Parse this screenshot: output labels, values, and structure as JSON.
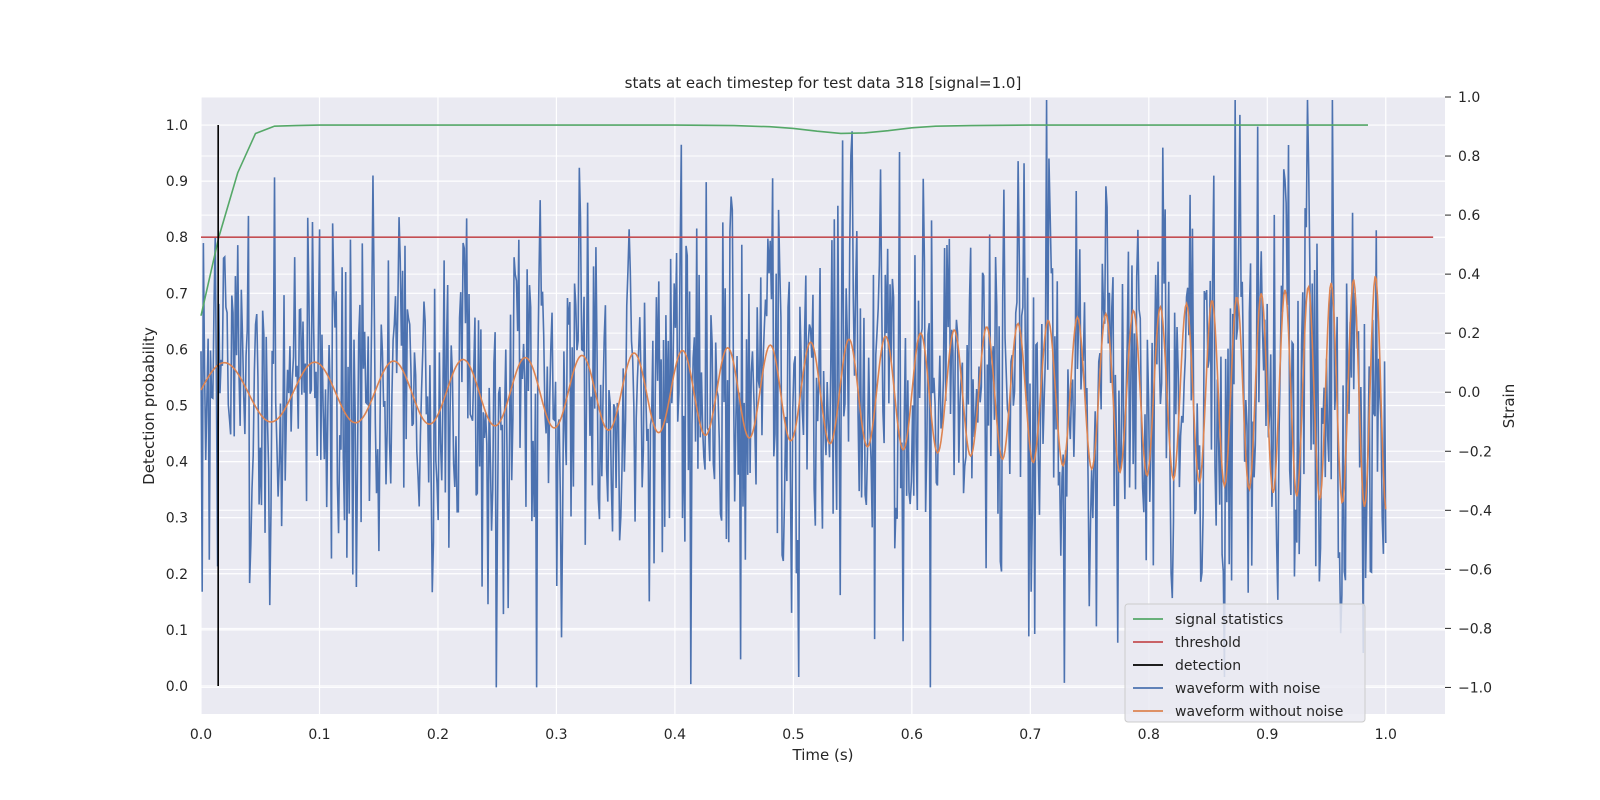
{
  "chart_data": {
    "type": "line",
    "title": "stats at each timestep for test data 318 [signal=1.0]",
    "xlabel": "Time (s)",
    "ylabel": "Detection probability",
    "y2label": "Strain",
    "xlim": [
      0.0,
      1.05
    ],
    "ylim": [
      -0.05,
      1.05
    ],
    "y2lim": [
      -1.09,
      1.0
    ],
    "xticks": [
      0.0,
      0.1,
      0.2,
      0.3,
      0.4,
      0.5,
      0.6,
      0.7,
      0.8,
      0.9,
      1.0
    ],
    "xtick_labels": [
      "0.0",
      "0.1",
      "0.2",
      "0.3",
      "0.4",
      "0.5",
      "0.6",
      "0.7",
      "0.8",
      "0.9",
      "1.0"
    ],
    "yticks": [
      0.0,
      0.1,
      0.2,
      0.3,
      0.4,
      0.5,
      0.6,
      0.7,
      0.8,
      0.9,
      1.0
    ],
    "ytick_labels": [
      "0.0",
      "0.1",
      "0.2",
      "0.3",
      "0.4",
      "0.5",
      "0.6",
      "0.7",
      "0.8",
      "0.9",
      "1.0"
    ],
    "y2ticks": [
      -1.0,
      -0.8,
      -0.6,
      -0.4,
      -0.2,
      0.0,
      0.2,
      0.4,
      0.6,
      0.8,
      1.0
    ],
    "y2tick_labels": [
      "−1.0",
      "−0.8",
      "−0.6",
      "−0.4",
      "−0.2",
      "0.0",
      "0.2",
      "0.4",
      "0.6",
      "0.8",
      "1.0"
    ],
    "grid": true,
    "background": "#eaeaf2",
    "legend_position": "lower-right",
    "legend": [
      "signal statistics",
      "threshold",
      "detection",
      "waveform with noise",
      "waveform without noise"
    ],
    "series": [
      {
        "name": "signal statistics",
        "axis": "left",
        "color": "#55a868",
        "x": [
          0.0,
          0.015,
          0.031,
          0.046,
          0.062,
          0.08,
          0.1,
          0.2,
          0.3,
          0.4,
          0.45,
          0.48,
          0.5,
          0.52,
          0.54,
          0.56,
          0.58,
          0.6,
          0.62,
          0.65,
          0.7,
          0.8,
          0.9,
          0.985
        ],
        "values": [
          0.66,
          0.8,
          0.915,
          0.985,
          0.998,
          0.999,
          1.0,
          1.0,
          1.0,
          1.0,
          0.999,
          0.997,
          0.994,
          0.989,
          0.985,
          0.986,
          0.99,
          0.995,
          0.998,
          0.999,
          1.0,
          1.0,
          1.0,
          1.0
        ]
      },
      {
        "name": "threshold",
        "axis": "left",
        "color": "#c44e52",
        "x": [
          0.0,
          1.04
        ],
        "values": [
          0.8,
          0.8
        ]
      },
      {
        "name": "detection",
        "axis": "left",
        "color": "#000000",
        "x": [
          0.0145,
          0.0145
        ],
        "values": [
          0.0,
          1.0
        ]
      },
      {
        "name": "waveform with noise",
        "axis": "right",
        "color": "#4c72b0",
        "description": "noise-dominated strain, ~0.35 std, range approx -1.0 to 0.99, 1000 samples over 0-1 s"
      },
      {
        "name": "waveform without noise",
        "axis": "right",
        "color": "#dd8452",
        "description": "chirp: amplitude grows from ~0.1 to ~0.4, frequency rises from ~12 Hz to ~55 Hz over 0-1 s"
      }
    ]
  }
}
